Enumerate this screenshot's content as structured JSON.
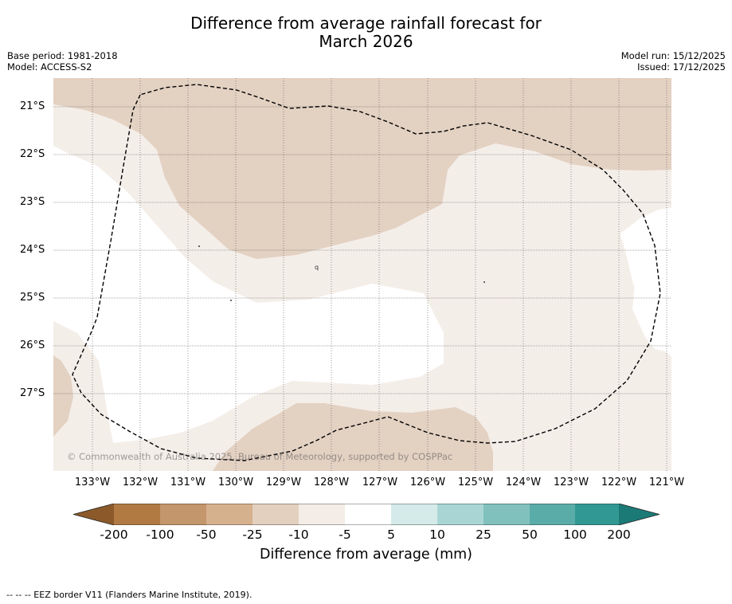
{
  "title_line1": "Difference from average rainfall forecast for",
  "title_line2": "March 2026",
  "meta_left": [
    "Base period: 1981-2018",
    "Model: ACCESS-S2"
  ],
  "meta_right": [
    "Model run: 15/12/2025",
    "Issued: 17/12/2025"
  ],
  "latitude_labels": [
    "21°S",
    "22°S",
    "23°S",
    "24°S",
    "25°S",
    "26°S",
    "27°S"
  ],
  "longitude_labels": [
    "133°W",
    "132°W",
    "131°W",
    "130°W",
    "129°W",
    "128°W",
    "127°W",
    "126°W",
    "125°W",
    "124°W",
    "123°W",
    "122°W",
    "121°W"
  ],
  "copyright": "© Commonwealth of Australia 2025, Bureau of Meteorology, supported by COSPPac",
  "map_labels": {
    "small_contour": "q"
  },
  "colorbar": {
    "title": "Difference from average (mm)",
    "tick_labels": [
      "-200",
      "-100",
      "-50",
      "-25",
      "-10",
      "-5",
      "5",
      "10",
      "25",
      "50",
      "100",
      "200"
    ],
    "colors": [
      "#8c5a2a",
      "#b07a42",
      "#c4966b",
      "#d6b18e",
      "#e3d0be",
      "#f4ede7",
      "#ffffff",
      "#d4ebea",
      "#a9d6d4",
      "#80c1be",
      "#5aaca9",
      "#319894",
      "#1c7a76"
    ]
  },
  "footer": "--  --  -- EEZ border V11 (Flanders Marine Institute, 2019).",
  "map_colors": {
    "light_tan": "#f4eee9",
    "tan": "#e3d1c2",
    "grid": "#555555",
    "eez": "#000000"
  }
}
